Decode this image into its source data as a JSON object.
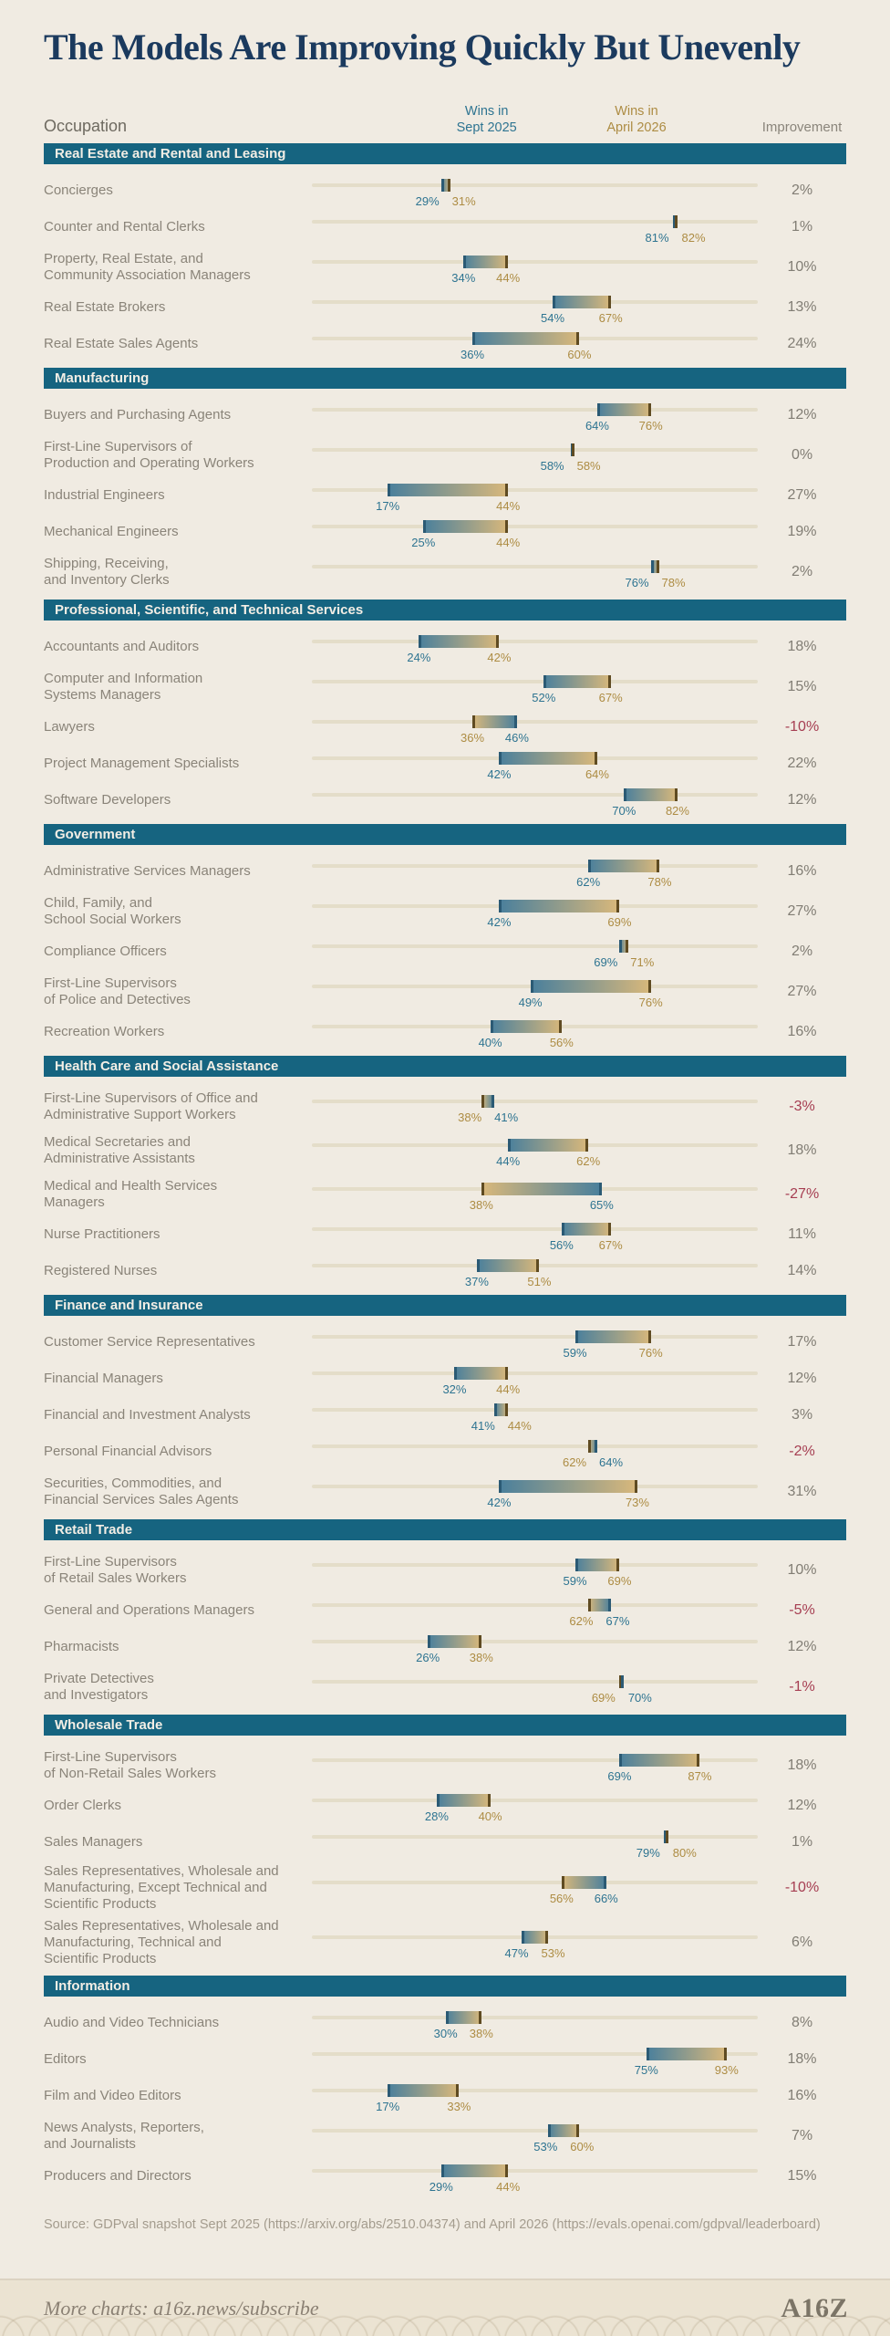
{
  "header": {
    "title": "The Models Are Improving Quickly But Unevenly",
    "columns": {
      "occupation": "Occupation",
      "wins_sept": "Wins in\nSept 2025",
      "wins_april": "Wins in\nApril 2026",
      "improvement": "Improvement"
    }
  },
  "chart_data": {
    "type": "bar",
    "subtype": "dumbbell-range",
    "unit": "%",
    "xlim": [
      0,
      100
    ],
    "series_labels": {
      "start": "Wins in Sept 2025",
      "end": "Wins in April 2026"
    },
    "legend_position": "top",
    "grid": false,
    "sections": [
      {
        "label": "Real Estate and Rental and Leasing",
        "rows": [
          {
            "occupation": "Concierges",
            "sept": 29,
            "april": 31,
            "improvement": "2%"
          },
          {
            "occupation": "Counter and Rental Clerks",
            "sept": 81,
            "april": 82,
            "improvement": "1%"
          },
          {
            "occupation": "Property, Real Estate, and\nCommunity Association Managers",
            "sept": 34,
            "april": 44,
            "improvement": "10%"
          },
          {
            "occupation": "Real Estate Brokers",
            "sept": 54,
            "april": 67,
            "improvement": "13%"
          },
          {
            "occupation": "Real Estate Sales Agents",
            "sept": 36,
            "april": 60,
            "improvement": "24%"
          }
        ]
      },
      {
        "label": "Manufacturing",
        "rows": [
          {
            "occupation": "Buyers and Purchasing Agents",
            "sept": 64,
            "april": 76,
            "improvement": "12%"
          },
          {
            "occupation": "First-Line Supervisors of\nProduction and Operating Workers",
            "sept": 58,
            "april": 58,
            "improvement": "0%"
          },
          {
            "occupation": "Industrial Engineers",
            "sept": 17,
            "april": 44,
            "improvement": "27%"
          },
          {
            "occupation": "Mechanical Engineers",
            "sept": 25,
            "april": 44,
            "improvement": "19%"
          },
          {
            "occupation": "Shipping, Receiving,\nand Inventory Clerks",
            "sept": 76,
            "april": 78,
            "improvement": "2%"
          }
        ]
      },
      {
        "label": "Professional, Scientific, and Technical Services",
        "rows": [
          {
            "occupation": "Accountants and Auditors",
            "sept": 24,
            "april": 42,
            "improvement": "18%"
          },
          {
            "occupation": "Computer and Information\nSystems Managers",
            "sept": 52,
            "april": 67,
            "improvement": "15%"
          },
          {
            "occupation": "Lawyers",
            "sept": 46,
            "april": 36,
            "improvement": "-10%"
          },
          {
            "occupation": "Project Management Specialists",
            "sept": 42,
            "april": 64,
            "improvement": "22%"
          },
          {
            "occupation": "Software Developers",
            "sept": 70,
            "april": 82,
            "improvement": "12%"
          }
        ]
      },
      {
        "label": "Government",
        "rows": [
          {
            "occupation": "Administrative Services Managers",
            "sept": 62,
            "april": 78,
            "improvement": "16%"
          },
          {
            "occupation": "Child, Family, and\nSchool Social Workers",
            "sept": 42,
            "april": 69,
            "improvement": "27%"
          },
          {
            "occupation": "Compliance Officers",
            "sept": 69,
            "april": 71,
            "improvement": "2%"
          },
          {
            "occupation": "First-Line Supervisors\nof Police and Detectives",
            "sept": 49,
            "april": 76,
            "improvement": "27%"
          },
          {
            "occupation": "Recreation Workers",
            "sept": 40,
            "april": 56,
            "improvement": "16%"
          }
        ]
      },
      {
        "label": "Health Care and Social Assistance",
        "rows": [
          {
            "occupation": "First-Line Supervisors of Office and\nAdministrative Support Workers",
            "sept": 41,
            "april": 38,
            "improvement": "-3%"
          },
          {
            "occupation": "Medical Secretaries and\nAdministrative Assistants",
            "sept": 44,
            "april": 62,
            "improvement": "18%"
          },
          {
            "occupation": "Medical and Health Services\nManagers",
            "sept": 65,
            "april": 38,
            "improvement": "-27%"
          },
          {
            "occupation": "Nurse Practitioners",
            "sept": 56,
            "april": 67,
            "improvement": "11%"
          },
          {
            "occupation": "Registered Nurses",
            "sept": 37,
            "april": 51,
            "improvement": "14%"
          }
        ]
      },
      {
        "label": "Finance and Insurance",
        "rows": [
          {
            "occupation": "Customer Service Representatives",
            "sept": 59,
            "april": 76,
            "improvement": "17%"
          },
          {
            "occupation": "Financial Managers",
            "sept": 32,
            "april": 44,
            "improvement": "12%"
          },
          {
            "occupation": "Financial and Investment Analysts",
            "sept": 41,
            "april": 44,
            "improvement": "3%"
          },
          {
            "occupation": "Personal Financial Advisors",
            "sept": 64,
            "april": 62,
            "improvement": "-2%"
          },
          {
            "occupation": "Securities, Commodities, and\nFinancial Services Sales Agents",
            "sept": 42,
            "april": 73,
            "improvement": "31%"
          }
        ]
      },
      {
        "label": "Retail Trade",
        "rows": [
          {
            "occupation": "First-Line Supervisors\nof Retail Sales Workers",
            "sept": 59,
            "april": 69,
            "improvement": "10%"
          },
          {
            "occupation": "General and Operations Managers",
            "sept": 67,
            "april": 62,
            "improvement": "-5%"
          },
          {
            "occupation": "Pharmacists",
            "sept": 26,
            "april": 38,
            "improvement": "12%"
          },
          {
            "occupation": "Private Detectives\nand Investigators",
            "sept": 70,
            "april": 69,
            "improvement": "-1%"
          }
        ]
      },
      {
        "label": "Wholesale Trade",
        "rows": [
          {
            "occupation": "First-Line Supervisors\nof Non-Retail Sales Workers",
            "sept": 69,
            "april": 87,
            "improvement": "18%"
          },
          {
            "occupation": "Order Clerks",
            "sept": 28,
            "april": 40,
            "improvement": "12%"
          },
          {
            "occupation": "Sales Managers",
            "sept": 79,
            "april": 80,
            "improvement": "1%"
          },
          {
            "occupation": "Sales Representatives, Wholesale and\nManufacturing, Except Technical and\nScientific Products",
            "sept": 66,
            "april": 56,
            "improvement": "-10%"
          },
          {
            "occupation": "Sales Representatives, Wholesale and\nManufacturing, Technical and\nScientific Products",
            "sept": 47,
            "april": 53,
            "improvement": "6%"
          }
        ]
      },
      {
        "label": "Information",
        "rows": [
          {
            "occupation": "Audio and Video Technicians",
            "sept": 30,
            "april": 38,
            "improvement": "8%"
          },
          {
            "occupation": "Editors",
            "sept": 75,
            "april": 93,
            "improvement": "18%"
          },
          {
            "occupation": "Film and Video Editors",
            "sept": 17,
            "april": 33,
            "improvement": "16%"
          },
          {
            "occupation": "News Analysts, Reporters,\nand Journalists",
            "sept": 53,
            "april": 60,
            "improvement": "7%"
          },
          {
            "occupation": "Producers and Directors",
            "sept": 29,
            "april": 44,
            "improvement": "15%"
          }
        ]
      }
    ]
  },
  "colors": {
    "bg": "#f0ebe2",
    "title": "#1b3a5e",
    "section": "#166480",
    "bar_teal": "#497f9c",
    "bar_gold": "#d9b87b",
    "cap_teal": "#2b5a74",
    "cap_brown": "#5f4b22",
    "track": "#e4ddc9",
    "teal_text": "#2e7491",
    "gold_text": "#ad8c43",
    "neg_text": "#a63e52"
  },
  "footer": {
    "source": "Source: GDPval snapshot Sept 2025 (https://arxiv.org/abs/2510.04374) and April 2026 (https://evals.openai.com/gdpval/leaderboard)",
    "more_charts": "More charts: a16z.news/subscribe",
    "logo_text": "A16Z"
  }
}
